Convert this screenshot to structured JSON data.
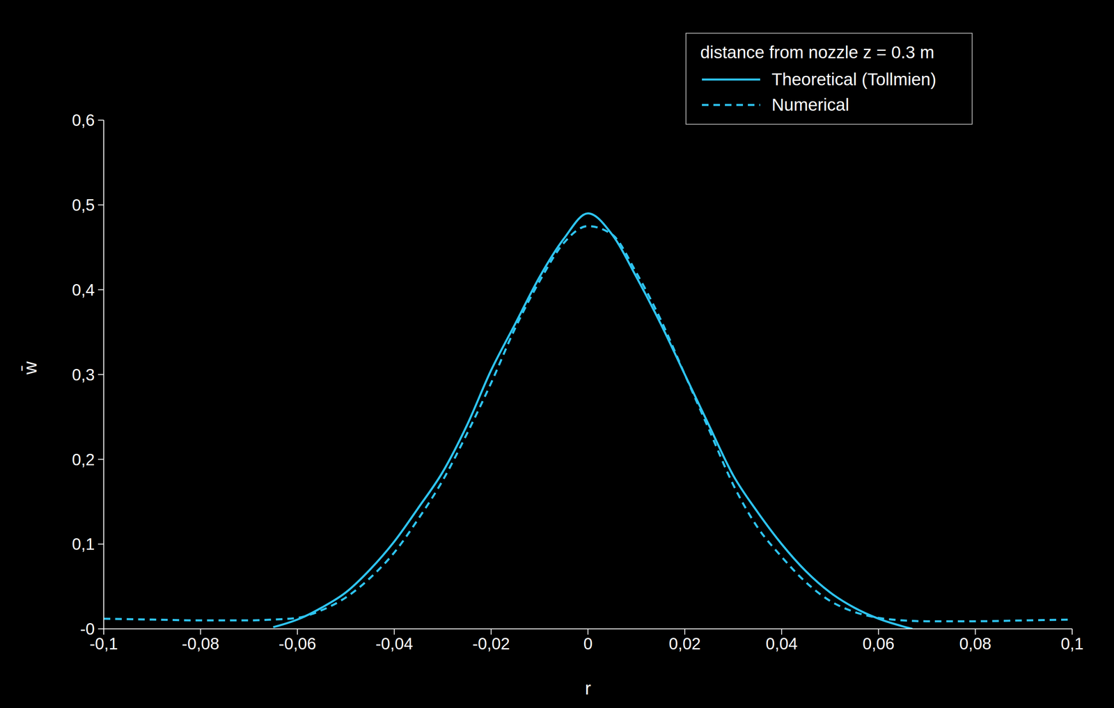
{
  "chart_data": {
    "type": "line",
    "legend_title": "distance from nozzle z = 0.3 m",
    "x_label": "r",
    "y_label": "w̄",
    "xlim": [
      -0.1,
      0.1
    ],
    "xticks": [
      {
        "value": -0.1,
        "label": "-0,1"
      },
      {
        "value": -0.08,
        "label": "-0,08"
      },
      {
        "value": -0.06,
        "label": "-0,06"
      },
      {
        "value": -0.04,
        "label": "-0,04"
      },
      {
        "value": -0.02,
        "label": "-0,02"
      },
      0,
      {
        "value": 0.02,
        "label": "0,02"
      },
      {
        "value": 0.04,
        "label": "0,04"
      },
      {
        "value": 0.06,
        "label": "0,06"
      },
      {
        "value": 0.08,
        "label": "0,08"
      },
      {
        "value": 0.1,
        "label": "0,1"
      }
    ],
    "ylim": [
      0,
      0.6
    ],
    "yticks": [
      {
        "value": 0,
        "label": "-0"
      },
      {
        "value": 0.1,
        "label": "0,1"
      },
      {
        "value": 0.2,
        "label": "0,2"
      },
      {
        "value": 0.3,
        "label": "0,3"
      },
      {
        "value": 0.4,
        "label": "0,4"
      },
      {
        "value": 0.5,
        "label": "0,5"
      },
      {
        "value": 0.6,
        "label": "0,6"
      }
    ],
    "grid": false,
    "legend": "upper right",
    "series": [
      {
        "name": "Theoretical (Tollmien)",
        "color": "#2ec4f0",
        "line_style": "solid",
        "x": [
          -0.065,
          -0.06,
          -0.055,
          -0.05,
          -0.045,
          -0.04,
          -0.035,
          -0.03,
          -0.025,
          -0.02,
          -0.015,
          -0.01,
          -0.005,
          0,
          0.005,
          0.01,
          0.015,
          0.02,
          0.025,
          0.03,
          0.035,
          0.04,
          0.045,
          0.05,
          0.055,
          0.06,
          0.065,
          0.067
        ],
        "values": [
          0.002,
          0.011,
          0.025,
          0.043,
          0.07,
          0.103,
          0.143,
          0.185,
          0.24,
          0.305,
          0.36,
          0.415,
          0.46,
          0.49,
          0.465,
          0.415,
          0.36,
          0.3,
          0.24,
          0.181,
          0.138,
          0.1,
          0.068,
          0.043,
          0.025,
          0.012,
          0.003,
          0.0
        ]
      },
      {
        "name": "Numerical",
        "color": "#2ec4f0",
        "line_style": "dashed",
        "x": [
          -0.1,
          -0.09,
          -0.08,
          -0.07,
          -0.065,
          -0.06,
          -0.055,
          -0.05,
          -0.045,
          -0.04,
          -0.035,
          -0.03,
          -0.025,
          -0.02,
          -0.015,
          -0.01,
          -0.005,
          0,
          0.005,
          0.01,
          0.015,
          0.02,
          0.025,
          0.03,
          0.035,
          0.04,
          0.045,
          0.05,
          0.055,
          0.06,
          0.065,
          0.07,
          0.08,
          0.09,
          0.1
        ],
        "values": [
          0.012,
          0.011,
          0.01,
          0.01,
          0.011,
          0.013,
          0.022,
          0.037,
          0.06,
          0.09,
          0.13,
          0.175,
          0.23,
          0.29,
          0.355,
          0.41,
          0.455,
          0.475,
          0.465,
          0.42,
          0.365,
          0.3,
          0.235,
          0.17,
          0.12,
          0.085,
          0.055,
          0.033,
          0.02,
          0.013,
          0.01,
          0.009,
          0.009,
          0.01,
          0.011
        ]
      }
    ]
  }
}
